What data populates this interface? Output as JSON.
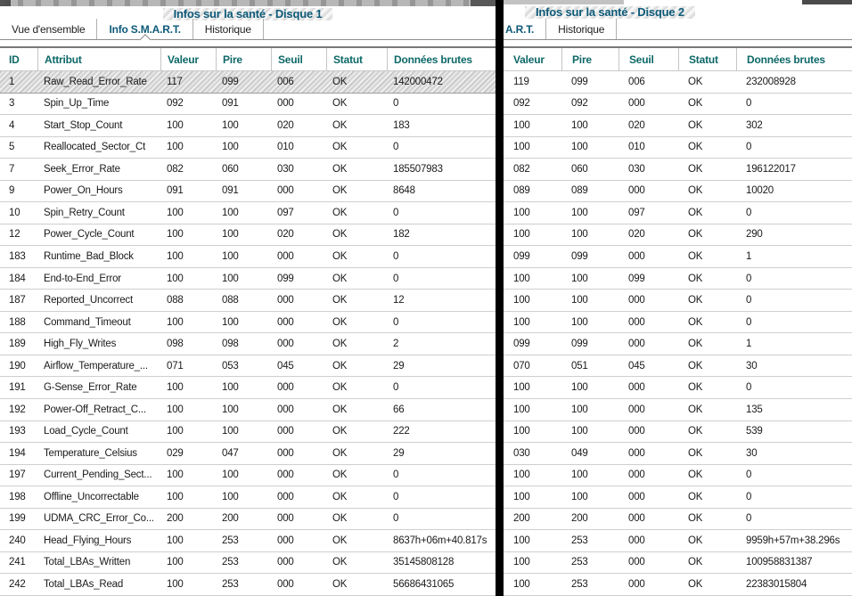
{
  "colors": {
    "accent_teal": "#0e6868",
    "active_tab": "#0d5a78",
    "divider": "#000000",
    "row_separator": "#cfcfcf"
  },
  "disk1": {
    "title": "Infos sur la santé - Disque 1",
    "tabs": [
      {
        "id": "vue-densemble",
        "label": "Vue d'ensemble",
        "active": false,
        "pointer": false
      },
      {
        "id": "info-smart",
        "label": "Info S.M.A.R.T.",
        "active": true,
        "pointer": true
      },
      {
        "id": "historique",
        "label": "Historique",
        "active": false,
        "pointer": false
      }
    ],
    "columns": [
      "ID",
      "Attribut",
      "Valeur",
      "Pire",
      "Seuil",
      "Statut",
      "Données brutes"
    ],
    "selected_row_index": 0,
    "rows": [
      [
        "1",
        "Raw_Read_Error_Rate",
        "117",
        "099",
        "006",
        "OK",
        "142000472"
      ],
      [
        "3",
        "Spin_Up_Time",
        "092",
        "091",
        "000",
        "OK",
        "0"
      ],
      [
        "4",
        "Start_Stop_Count",
        "100",
        "100",
        "020",
        "OK",
        "183"
      ],
      [
        "5",
        "Reallocated_Sector_Ct",
        "100",
        "100",
        "010",
        "OK",
        "0"
      ],
      [
        "7",
        "Seek_Error_Rate",
        "082",
        "060",
        "030",
        "OK",
        "185507983"
      ],
      [
        "9",
        "Power_On_Hours",
        "091",
        "091",
        "000",
        "OK",
        "8648"
      ],
      [
        "10",
        "Spin_Retry_Count",
        "100",
        "100",
        "097",
        "OK",
        "0"
      ],
      [
        "12",
        "Power_Cycle_Count",
        "100",
        "100",
        "020",
        "OK",
        "182"
      ],
      [
        "183",
        "Runtime_Bad_Block",
        "100",
        "100",
        "000",
        "OK",
        "0"
      ],
      [
        "184",
        "End-to-End_Error",
        "100",
        "100",
        "099",
        "OK",
        "0"
      ],
      [
        "187",
        "Reported_Uncorrect",
        "088",
        "088",
        "000",
        "OK",
        "12"
      ],
      [
        "188",
        "Command_Timeout",
        "100",
        "100",
        "000",
        "OK",
        "0"
      ],
      [
        "189",
        "High_Fly_Writes",
        "098",
        "098",
        "000",
        "OK",
        "2"
      ],
      [
        "190",
        "Airflow_Temperature_...",
        "071",
        "053",
        "045",
        "OK",
        "29"
      ],
      [
        "191",
        "G-Sense_Error_Rate",
        "100",
        "100",
        "000",
        "OK",
        "0"
      ],
      [
        "192",
        "Power-Off_Retract_C...",
        "100",
        "100",
        "000",
        "OK",
        "66"
      ],
      [
        "193",
        "Load_Cycle_Count",
        "100",
        "100",
        "000",
        "OK",
        "222"
      ],
      [
        "194",
        "Temperature_Celsius",
        "029",
        "047",
        "000",
        "OK",
        "29"
      ],
      [
        "197",
        "Current_Pending_Sect...",
        "100",
        "100",
        "000",
        "OK",
        "0"
      ],
      [
        "198",
        "Offline_Uncorrectable",
        "100",
        "100",
        "000",
        "OK",
        "0"
      ],
      [
        "199",
        "UDMA_CRC_Error_Co...",
        "200",
        "200",
        "000",
        "OK",
        "0"
      ],
      [
        "240",
        "Head_Flying_Hours",
        "100",
        "253",
        "000",
        "OK",
        "8637h+06m+40.817s"
      ],
      [
        "241",
        "Total_LBAs_Written",
        "100",
        "253",
        "000",
        "OK",
        "35145808128"
      ],
      [
        "242",
        "Total_LBAs_Read",
        "100",
        "253",
        "000",
        "OK",
        "56686431065"
      ]
    ]
  },
  "disk2": {
    "title": "Infos sur la santé - Disque 2",
    "tabs": [
      {
        "id": "info-smart-partial",
        "label": "A.R.T.",
        "active": true,
        "pointer": false
      },
      {
        "id": "historique",
        "label": "Historique",
        "active": false,
        "pointer": false
      }
    ],
    "columns": [
      "Valeur",
      "Pire",
      "Seuil",
      "Statut",
      "Données brutes"
    ],
    "selected_row_index": -1,
    "rows": [
      [
        "119",
        "099",
        "006",
        "OK",
        "232008928"
      ],
      [
        "092",
        "092",
        "000",
        "OK",
        "0"
      ],
      [
        "100",
        "100",
        "020",
        "OK",
        "302"
      ],
      [
        "100",
        "100",
        "010",
        "OK",
        "0"
      ],
      [
        "082",
        "060",
        "030",
        "OK",
        "196122017"
      ],
      [
        "089",
        "089",
        "000",
        "OK",
        "10020"
      ],
      [
        "100",
        "100",
        "097",
        "OK",
        "0"
      ],
      [
        "100",
        "100",
        "020",
        "OK",
        "290"
      ],
      [
        "099",
        "099",
        "000",
        "OK",
        "1"
      ],
      [
        "100",
        "100",
        "099",
        "OK",
        "0"
      ],
      [
        "100",
        "100",
        "000",
        "OK",
        "0"
      ],
      [
        "100",
        "100",
        "000",
        "OK",
        "0"
      ],
      [
        "099",
        "099",
        "000",
        "OK",
        "1"
      ],
      [
        "070",
        "051",
        "045",
        "OK",
        "30"
      ],
      [
        "100",
        "100",
        "000",
        "OK",
        "0"
      ],
      [
        "100",
        "100",
        "000",
        "OK",
        "135"
      ],
      [
        "100",
        "100",
        "000",
        "OK",
        "539"
      ],
      [
        "030",
        "049",
        "000",
        "OK",
        "30"
      ],
      [
        "100",
        "100",
        "000",
        "OK",
        "0"
      ],
      [
        "100",
        "100",
        "000",
        "OK",
        "0"
      ],
      [
        "200",
        "200",
        "000",
        "OK",
        "0"
      ],
      [
        "100",
        "253",
        "000",
        "OK",
        "9959h+57m+38.296s"
      ],
      [
        "100",
        "253",
        "000",
        "OK",
        "100958831387"
      ],
      [
        "100",
        "253",
        "000",
        "OK",
        "22383015804"
      ]
    ]
  }
}
